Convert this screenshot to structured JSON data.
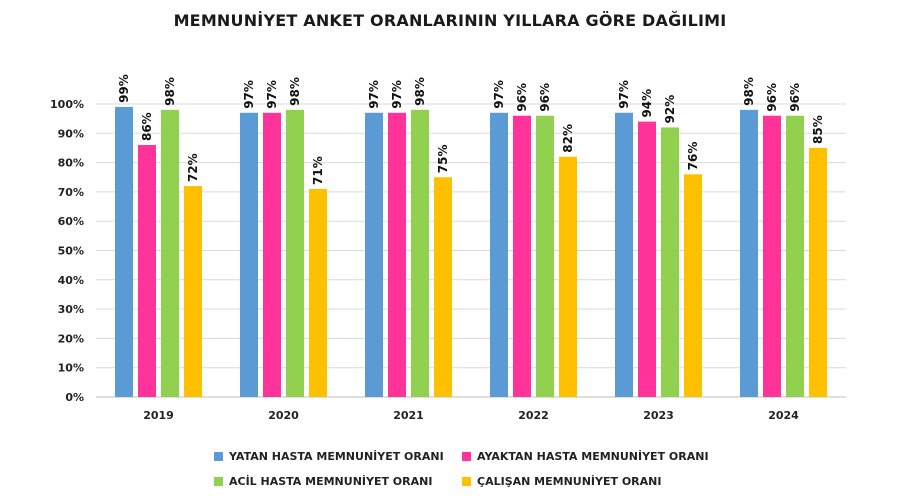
{
  "chart_data": {
    "type": "bar",
    "title": "MEMNUNİYET ANKET ORANLARININ YILLARA GÖRE DAĞILIMI",
    "categories": [
      "2019",
      "2020",
      "2021",
      "2022",
      "2023",
      "2024"
    ],
    "series": [
      {
        "name": "YATAN HASTA MEMNUNİYET ORANI",
        "color": "#5b9bd5",
        "values": [
          99,
          97,
          97,
          97,
          97,
          98
        ]
      },
      {
        "name": "AYAKTAN HASTA MEMNUNİYET ORANI",
        "color": "#ff3399",
        "values": [
          86,
          97,
          97,
          96,
          94,
          96
        ]
      },
      {
        "name": "ACİL HASTA MEMNUNİYET ORANI",
        "color": "#92d050",
        "values": [
          98,
          98,
          98,
          96,
          92,
          96
        ]
      },
      {
        "name": "ÇALIŞAN MEMNUNİYET ORANI",
        "color": "#ffc000",
        "values": [
          72,
          71,
          75,
          82,
          76,
          85
        ]
      }
    ],
    "y_ticks": [
      "0%",
      "10%",
      "20%",
      "30%",
      "40%",
      "50%",
      "60%",
      "70%",
      "80%",
      "90%",
      "100%"
    ],
    "ylim": [
      0,
      100
    ],
    "value_suffix": "%",
    "grid": true,
    "legend_position": "bottom"
  }
}
